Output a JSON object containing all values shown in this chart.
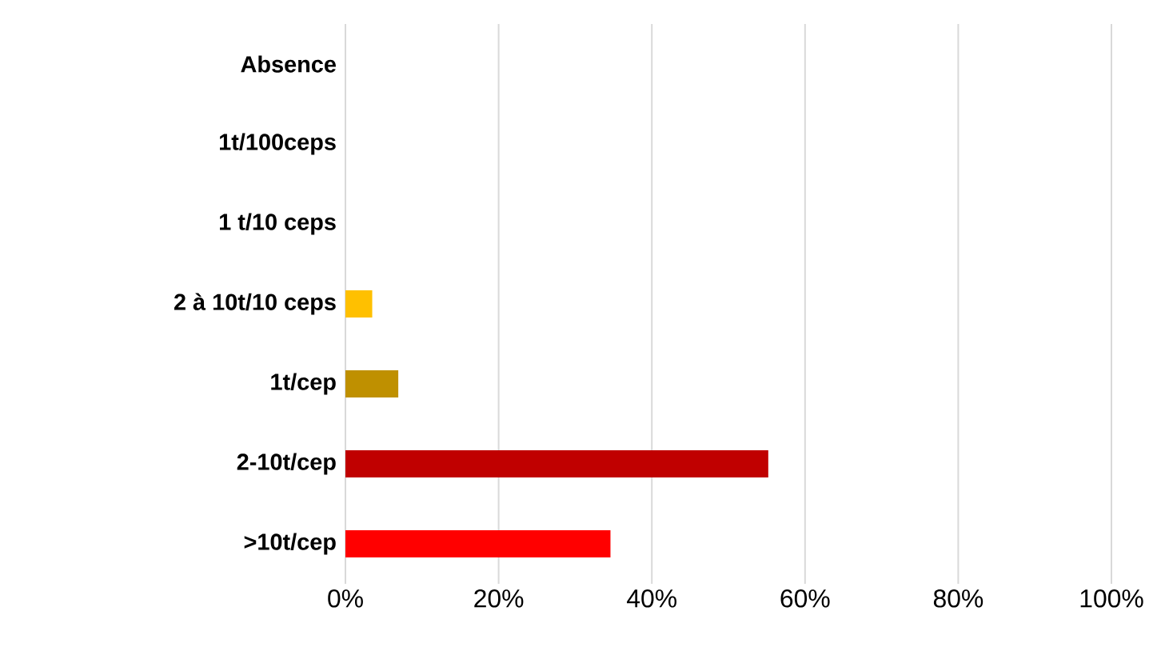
{
  "chart_data": {
    "type": "bar",
    "orientation": "horizontal",
    "categories": [
      "Absence",
      "1t/100ceps",
      "1 t/10 ceps",
      "2 à 10t/10 ceps",
      "1t/cep",
      "2-10t/cep",
      ">10t/cep"
    ],
    "values": [
      0,
      0,
      0,
      3.5,
      6.9,
      55.2,
      34.6
    ],
    "colors": [
      "#ffc000",
      "#ffc000",
      "#ffc000",
      "#ffc000",
      "#bf9000",
      "#c00000",
      "#ff0000"
    ],
    "xlim": [
      0,
      100
    ],
    "xticks": [
      {
        "value": 0,
        "label": "0%"
      },
      {
        "value": 20,
        "label": "20%"
      },
      {
        "value": 40,
        "label": "40%"
      },
      {
        "value": 60,
        "label": "60%"
      },
      {
        "value": 80,
        "label": "80%"
      },
      {
        "value": 100,
        "label": "100%"
      }
    ],
    "grid": "x"
  }
}
